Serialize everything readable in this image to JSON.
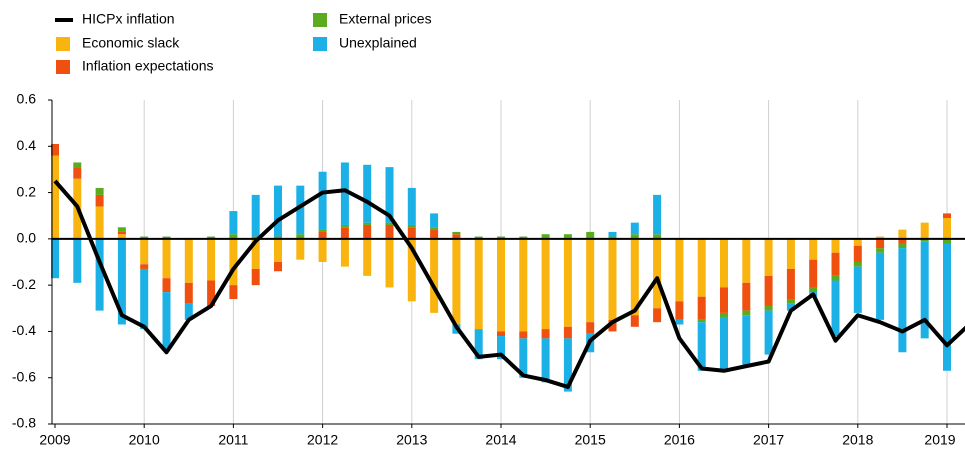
{
  "chart_data": {
    "type": "bar",
    "stacked": true,
    "categories": [
      "2009",
      null,
      null,
      null,
      "2010",
      null,
      null,
      null,
      "2011",
      null,
      null,
      null,
      "2012",
      null,
      null,
      null,
      "2013",
      null,
      null,
      null,
      "2014",
      null,
      null,
      null,
      "2015",
      null,
      null,
      null,
      "2016",
      null,
      null,
      null,
      "2017",
      null,
      null,
      null,
      "2018",
      null,
      null,
      null,
      "2019",
      null
    ],
    "ylim": [
      -0.8,
      0.6
    ],
    "yticks": [
      0.6,
      0.4,
      0.2,
      {
        "value": 0,
        "label": "0.0"
      },
      -0.2,
      -0.4,
      -0.6,
      -0.8
    ],
    "series": [
      {
        "name": "HICPx inflation",
        "type": "line",
        "color": "#000000",
        "values": [
          0.25,
          0.14,
          -0.1,
          -0.33,
          -0.38,
          -0.49,
          -0.35,
          -0.29,
          -0.13,
          -0.01,
          0.08,
          0.14,
          0.2,
          0.21,
          0.16,
          0.1,
          -0.04,
          -0.21,
          -0.38,
          -0.51,
          -0.5,
          -0.59,
          -0.61,
          -0.64,
          -0.44,
          -0.36,
          -0.31,
          -0.17,
          -0.43,
          -0.56,
          -0.57,
          -0.55,
          -0.53,
          -0.31,
          -0.24,
          -0.44,
          -0.33,
          -0.36,
          -0.4,
          -0.35,
          -0.46,
          -0.37
        ]
      },
      {
        "name": "Economic slack",
        "color": "#f9b40f",
        "values": [
          0.36,
          0.26,
          0.14,
          0.02,
          -0.11,
          -0.17,
          -0.19,
          -0.18,
          -0.2,
          -0.13,
          -0.1,
          -0.09,
          -0.1,
          -0.12,
          -0.16,
          -0.21,
          -0.27,
          -0.32,
          -0.37,
          -0.39,
          -0.4,
          -0.4,
          -0.39,
          -0.38,
          -0.36,
          -0.35,
          -0.33,
          -0.3,
          -0.27,
          -0.25,
          -0.21,
          -0.19,
          -0.16,
          -0.13,
          -0.09,
          -0.06,
          -0.03,
          0.01,
          0.04,
          0.07,
          0.09,
          null
        ]
      },
      {
        "name": "Inflation expectations",
        "color": "#f0500f",
        "values": [
          0.05,
          0.05,
          0.05,
          0.01,
          -0.02,
          -0.06,
          -0.09,
          -0.11,
          -0.06,
          -0.07,
          -0.04,
          0,
          0.03,
          0.05,
          0.06,
          0.06,
          0.05,
          0.04,
          0.02,
          0,
          -0.02,
          -0.03,
          -0.04,
          -0.05,
          -0.05,
          -0.05,
          -0.05,
          -0.06,
          -0.08,
          -0.1,
          -0.11,
          -0.12,
          -0.13,
          -0.13,
          -0.12,
          -0.1,
          -0.07,
          -0.04,
          -0.02,
          0,
          0.02,
          null
        ]
      },
      {
        "name": "External prices",
        "color": "#5aab1e",
        "values": [
          0,
          0.02,
          0.03,
          0.02,
          0.01,
          0.01,
          0,
          0.01,
          0.02,
          0.01,
          0.01,
          0.02,
          0.01,
          0.01,
          0.01,
          0.01,
          0.01,
          0.01,
          0.01,
          0.01,
          0.01,
          0.01,
          0.02,
          0.02,
          0.03,
          0.01,
          0.02,
          0.02,
          0,
          -0.01,
          -0.02,
          -0.02,
          -0.02,
          -0.02,
          -0.02,
          -0.02,
          -0.02,
          -0.02,
          -0.02,
          -0.01,
          -0.02,
          null
        ]
      },
      {
        "name": "Unexplained",
        "color": "#1bb1e7",
        "values": [
          -0.17,
          -0.19,
          -0.31,
          -0.37,
          -0.26,
          -0.25,
          -0.07,
          0,
          0.1,
          0.18,
          0.22,
          0.21,
          0.25,
          0.27,
          0.25,
          0.24,
          0.16,
          0.06,
          -0.04,
          -0.13,
          -0.1,
          -0.17,
          -0.19,
          -0.23,
          -0.08,
          0.02,
          0.05,
          0.17,
          -0.02,
          -0.21,
          -0.23,
          -0.22,
          -0.19,
          -0.03,
          -0.02,
          -0.24,
          -0.2,
          -0.29,
          -0.45,
          -0.42,
          -0.55,
          null
        ]
      }
    ]
  }
}
